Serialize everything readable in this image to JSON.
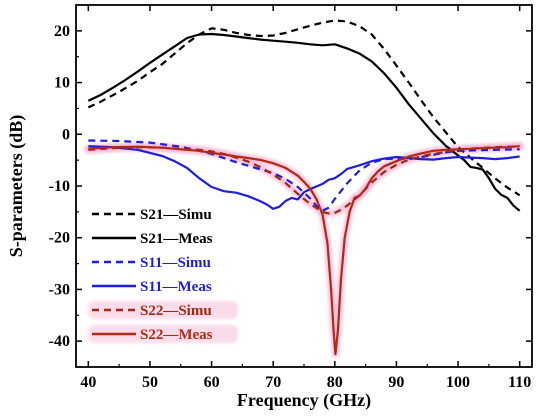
{
  "chart_data": {
    "type": "line",
    "xlabel": "Frequency (GHz)",
    "ylabel": "S-parameters (dB)",
    "xlim": [
      38,
      112
    ],
    "ylim": [
      -45,
      25
    ],
    "xticks": [
      40,
      50,
      60,
      70,
      80,
      90,
      100,
      110
    ],
    "yticks": [
      20,
      10,
      0,
      -10,
      -20,
      -30,
      -40
    ],
    "grid": false,
    "legend_position": "bottom-left",
    "series": [
      {
        "name": "S21—Simu",
        "color": "#000000",
        "dash": "dashed",
        "x": [
          40,
          42,
          45,
          48,
          50,
          52,
          54,
          56,
          58,
          60,
          62,
          64,
          66,
          68,
          70,
          72,
          74,
          76,
          78,
          80,
          82,
          84,
          86,
          88,
          90,
          92,
          94,
          96,
          98,
          100,
          102,
          104,
          106,
          108,
          110
        ],
        "y": [
          5.2,
          6.3,
          8.2,
          10.3,
          12.0,
          13.6,
          15.6,
          17.6,
          19.3,
          20.5,
          20.2,
          19.6,
          19.2,
          19.0,
          19.1,
          19.6,
          20.3,
          21.0,
          21.6,
          22.0,
          21.8,
          20.9,
          19.3,
          16.5,
          13.3,
          10.0,
          6.6,
          3.3,
          0.4,
          -2.5,
          -4.5,
          -6.5,
          -8.5,
          -10.3,
          -11.8
        ]
      },
      {
        "name": "S21—Meas",
        "color": "#000000",
        "dash": "solid",
        "x": [
          40,
          42,
          44,
          46,
          48,
          50,
          52,
          54,
          56,
          58,
          60,
          62,
          64,
          66,
          68,
          70,
          72,
          74,
          76,
          78,
          80,
          82,
          84,
          86,
          88,
          90,
          92,
          94,
          96,
          98,
          100,
          101,
          102,
          103,
          104,
          105,
          106,
          107,
          108,
          109,
          110
        ],
        "y": [
          6.5,
          7.6,
          9.0,
          10.5,
          12.1,
          13.8,
          15.4,
          17.0,
          18.6,
          19.3,
          19.4,
          19.2,
          18.9,
          18.6,
          18.3,
          18.1,
          17.9,
          17.7,
          17.4,
          17.2,
          17.4,
          16.6,
          15.6,
          14.1,
          11.8,
          9.0,
          5.8,
          3.0,
          0.2,
          -2.2,
          -4.1,
          -5.0,
          -6.3,
          -6.5,
          -6.8,
          -8.5,
          -10.5,
          -11.7,
          -12.3,
          -13.8,
          -14.8
        ]
      },
      {
        "name": "S11—Simu",
        "color": "#1e1edc",
        "dash": "dashed",
        "x": [
          40,
          45,
          50,
          55,
          58,
          60,
          62,
          64,
          66,
          68,
          70,
          72,
          74,
          76,
          77,
          78,
          79,
          80,
          82,
          84,
          86,
          88,
          90,
          92,
          95,
          98,
          100,
          103,
          106,
          110
        ],
        "y": [
          -1.2,
          -1.3,
          -1.6,
          -2.4,
          -3.2,
          -3.8,
          -4.6,
          -5.4,
          -6.1,
          -6.8,
          -7.5,
          -8.6,
          -10.2,
          -12.4,
          -13.8,
          -14.8,
          -14.2,
          -12.5,
          -9.5,
          -7.0,
          -5.5,
          -4.8,
          -4.7,
          -4.8,
          -4.2,
          -3.5,
          -3.2,
          -3.1,
          -3.0,
          -2.9
        ]
      },
      {
        "name": "S11—Meas",
        "color": "#1e1edc",
        "dash": "solid",
        "x": [
          40,
          44,
          48,
          52,
          54,
          56,
          58,
          60,
          62,
          64,
          66,
          68,
          69,
          70,
          71,
          72,
          73,
          74,
          75,
          76,
          77,
          78,
          79,
          80,
          81,
          82,
          84,
          86,
          88,
          90,
          92,
          94,
          96,
          98,
          100,
          102,
          104,
          106,
          108,
          110
        ],
        "y": [
          -2.3,
          -2.5,
          -3.0,
          -4.2,
          -5.2,
          -6.5,
          -8.5,
          -10.2,
          -11.0,
          -11.3,
          -12.0,
          -13.0,
          -13.6,
          -14.4,
          -14.0,
          -12.9,
          -12.3,
          -12.6,
          -11.2,
          -10.6,
          -10.1,
          -9.6,
          -8.8,
          -8.5,
          -7.7,
          -6.7,
          -6.0,
          -5.2,
          -4.7,
          -4.4,
          -4.6,
          -4.8,
          -4.9,
          -4.6,
          -4.4,
          -4.5,
          -4.6,
          -4.8,
          -4.6,
          -4.3
        ]
      },
      {
        "name": "S22—Simu",
        "color": "#9b2b12",
        "dash": "dashed",
        "x": [
          40,
          44,
          48,
          52,
          55,
          58,
          60,
          62,
          64,
          66,
          68,
          70,
          72,
          74,
          76,
          78,
          79,
          80,
          81,
          82,
          84,
          86,
          88,
          90,
          92,
          95,
          98,
          100,
          103,
          106,
          110
        ],
        "y": [
          -3.0,
          -2.7,
          -2.5,
          -2.6,
          -2.8,
          -3.0,
          -3.3,
          -3.8,
          -4.5,
          -5.3,
          -6.4,
          -7.8,
          -9.4,
          -11.5,
          -13.5,
          -15.0,
          -15.3,
          -15.2,
          -14.6,
          -13.8,
          -11.8,
          -9.3,
          -7.3,
          -5.9,
          -4.9,
          -4.0,
          -3.4,
          -3.0,
          -2.7,
          -2.5,
          -2.3
        ]
      },
      {
        "name": "S22—Meas",
        "color": "#b02a14",
        "dash": "solid",
        "x": [
          40,
          44,
          48,
          52,
          55,
          58,
          60,
          62,
          64,
          66,
          68,
          70,
          72,
          74,
          75,
          76,
          77,
          78,
          78.8,
          79.4,
          79.8,
          80.1,
          80.5,
          81.0,
          81.6,
          82.4,
          83.2,
          84,
          85,
          86,
          87,
          88,
          90,
          92,
          94,
          96,
          98,
          100,
          102,
          104,
          106,
          108,
          110
        ],
        "y": [
          -2.8,
          -2.5,
          -2.4,
          -2.6,
          -2.9,
          -3.2,
          -3.6,
          -3.9,
          -4.3,
          -4.6,
          -5.0,
          -5.6,
          -6.5,
          -8.0,
          -9.2,
          -10.5,
          -12.5,
          -15.5,
          -21.0,
          -30.0,
          -38.0,
          -42.5,
          -38.0,
          -28.0,
          -20.0,
          -15.0,
          -12.3,
          -11.9,
          -10.5,
          -8.5,
          -7.2,
          -6.2,
          -5.2,
          -4.3,
          -3.7,
          -3.2,
          -3.0,
          -2.9,
          -2.8,
          -2.7,
          -2.6,
          -2.5,
          -2.3
        ]
      }
    ]
  }
}
